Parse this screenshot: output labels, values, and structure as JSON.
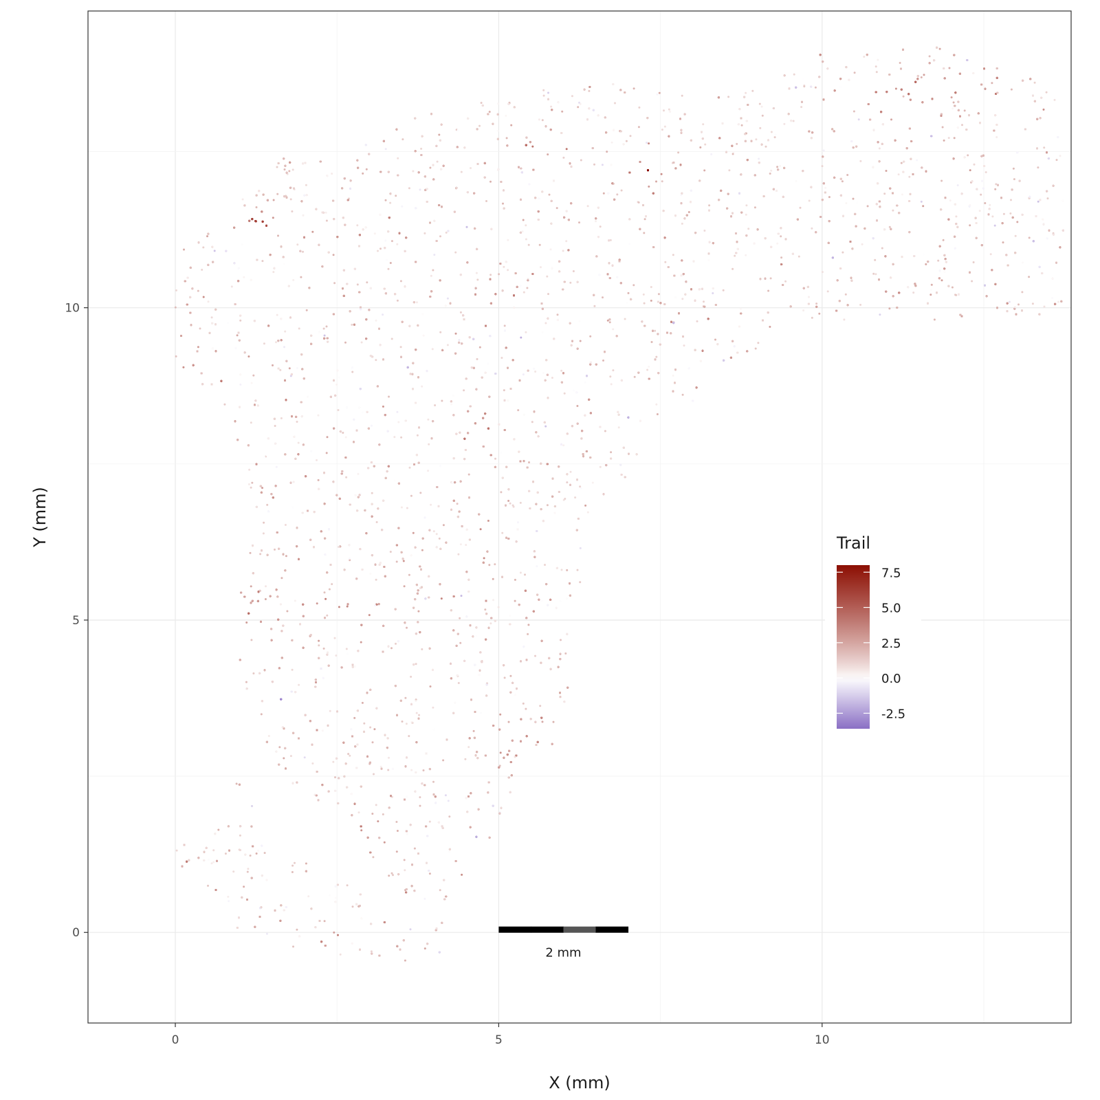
{
  "chart_data": {
    "type": "scatter",
    "title": "",
    "xlabel": "X (mm)",
    "ylabel": "Y (mm)",
    "xlim": [
      -1.35,
      13.85
    ],
    "ylim": [
      -1.45,
      14.75
    ],
    "x_ticks": [
      0,
      5,
      10
    ],
    "x_tick_labels": [
      "0",
      "5",
      "10"
    ],
    "y_ticks": [
      0,
      5,
      10
    ],
    "y_tick_labels": [
      "0",
      "5",
      "10"
    ],
    "grid": true,
    "theme": "bw",
    "color_variable": "Trail",
    "legend": {
      "title": "Trail",
      "placement": "inside-right",
      "range": [
        -3.6,
        8.0
      ],
      "breaks": [
        7.5,
        5.0,
        2.5,
        0.0,
        -2.5
      ],
      "break_labels": [
        "7.5",
        "5.0",
        "2.5",
        "0.0",
        "-2.5"
      ],
      "colors": {
        "low": "#8a6fc4",
        "mid": "#ffffff",
        "high": "#8c0f03"
      }
    },
    "scale_bar": {
      "label": "2 mm",
      "length_mm": 2,
      "position": [
        5,
        0.05
      ]
    },
    "tissue_outline": [
      [
        0,
        1.3
      ],
      [
        0.2,
        1.5
      ],
      [
        0.6,
        1.55
      ],
      [
        1.0,
        2.55
      ],
      [
        1.4,
        1.5
      ],
      [
        2.4,
        1.0
      ],
      [
        2.9,
        0.6
      ],
      [
        4.2,
        -0.35
      ],
      [
        4.1,
        -0.6
      ],
      [
        3.6,
        -0.55
      ],
      [
        2.6,
        -0.45
      ],
      [
        1.7,
        -0.2
      ],
      [
        1.1,
        -0.1
      ],
      [
        0.7,
        0.2
      ],
      [
        0.3,
        0.8
      ],
      [
        0,
        1.15
      ]
    ],
    "tissue_main": [
      [
        4.1,
        -0.5
      ],
      [
        4.15,
        0.5
      ],
      [
        4.6,
        1.1
      ],
      [
        4.6,
        1.5
      ],
      [
        4.9,
        1.5
      ],
      [
        5.2,
        2.0
      ],
      [
        5.2,
        2.5
      ],
      [
        5.8,
        2.9
      ],
      [
        6.0,
        3.5
      ],
      [
        6.1,
        4.0
      ],
      [
        6.25,
        5.0
      ],
      [
        6.3,
        5.9
      ],
      [
        6.4,
        6.9
      ],
      [
        6.7,
        6.9
      ],
      [
        7.2,
        7.1
      ],
      [
        7.2,
        7.8
      ],
      [
        7.9,
        8.4
      ],
      [
        8.6,
        9.05
      ],
      [
        9.2,
        9.5
      ],
      [
        9.2,
        9.7
      ],
      [
        9.9,
        9.8
      ],
      [
        12.0,
        9.8
      ],
      [
        12.3,
        9.9
      ],
      [
        13.7,
        9.85
      ],
      [
        13.75,
        10.3
      ],
      [
        13.75,
        12.0
      ],
      [
        13.6,
        13.5
      ],
      [
        13.2,
        13.9
      ],
      [
        12.6,
        14.0
      ],
      [
        11.9,
        14.2
      ],
      [
        11.0,
        14.2
      ],
      [
        10.5,
        14.2
      ],
      [
        10.3,
        14.0
      ],
      [
        9.9,
        14.1
      ],
      [
        9.6,
        13.9
      ],
      [
        9.0,
        13.5
      ],
      [
        8.5,
        13.4
      ],
      [
        8.2,
        13.3
      ],
      [
        7.5,
        13.6
      ],
      [
        6.8,
        13.7
      ],
      [
        6.0,
        13.6
      ],
      [
        5.3,
        13.4
      ],
      [
        5.0,
        13.3
      ],
      [
        4.4,
        13.3
      ],
      [
        3.6,
        13.0
      ],
      [
        2.8,
        12.6
      ],
      [
        2.4,
        12.4
      ],
      [
        1.7,
        12.5
      ],
      [
        1.2,
        12.0
      ],
      [
        0.6,
        11.7
      ],
      [
        0.3,
        11.2
      ],
      [
        0.0,
        10.9
      ],
      [
        0.0,
        9.2
      ],
      [
        0.3,
        8.8
      ],
      [
        0.8,
        8.3
      ],
      [
        1.1,
        7.5
      ],
      [
        1.2,
        6.5
      ],
      [
        1.1,
        5.8
      ],
      [
        0.95,
        5.3
      ],
      [
        0.9,
        4.5
      ],
      [
        1.2,
        3.6
      ],
      [
        1.4,
        2.8
      ],
      [
        2.0,
        2.2
      ],
      [
        2.5,
        1.9
      ],
      [
        3.0,
        1.2
      ],
      [
        3.5,
        0.7
      ],
      [
        3.9,
        0.2
      ],
      [
        4.0,
        -0.3
      ]
    ],
    "hotspots": [
      {
        "x": 1.35,
        "y": 11.35,
        "value": 6.8,
        "rx": 0.35,
        "ry": 0.22
      },
      {
        "x": 5.8,
        "y": 12.6,
        "value": 6.2,
        "rx": 0.45,
        "ry": 0.15
      },
      {
        "x": 7.3,
        "y": 12.15,
        "value": 7.5,
        "rx": 0.25,
        "ry": 0.3
      },
      {
        "x": 4.9,
        "y": 10.25,
        "value": 4.6,
        "rx": 0.3,
        "ry": 0.2
      },
      {
        "x": 2.3,
        "y": 5.2,
        "value": 3.6,
        "rx": 0.8,
        "ry": 0.4
      },
      {
        "x": 1.1,
        "y": 5.0,
        "value": 3.4,
        "rx": 0.25,
        "ry": 1.2
      },
      {
        "x": 3.1,
        "y": 1.6,
        "value": 3.2,
        "rx": 0.5,
        "ry": 0.6
      },
      {
        "x": 2.35,
        "y": -0.05,
        "value": 3.3,
        "rx": 0.25,
        "ry": 0.3
      },
      {
        "x": 4.85,
        "y": 6.5,
        "value": 3.0,
        "rx": 0.25,
        "ry": 1.4
      },
      {
        "x": 5.1,
        "y": 3.0,
        "value": 3.4,
        "rx": 0.5,
        "ry": 0.6
      },
      {
        "x": 12.0,
        "y": 13.5,
        "value": 3.6,
        "rx": 1.5,
        "ry": 0.3
      },
      {
        "x": 10.9,
        "y": 13.3,
        "value": 3.4,
        "rx": 0.8,
        "ry": 0.3
      },
      {
        "x": 0.2,
        "y": 9.3,
        "value": 3.1,
        "rx": 0.2,
        "ry": 0.8
      }
    ],
    "points_rendered": 26000
  }
}
